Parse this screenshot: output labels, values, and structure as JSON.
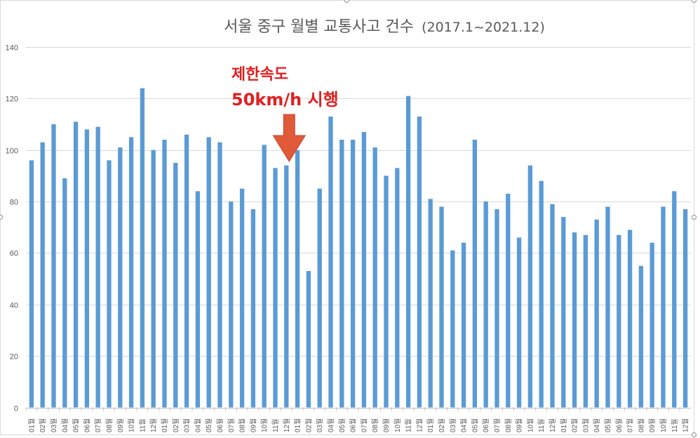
{
  "chart_data": {
    "type": "bar",
    "title": "서울 중구 월별 교통사고 건수",
    "subtitle": "(2017.1~2021.12)",
    "xlabel": "",
    "ylabel": "",
    "ylim": [
      0,
      140
    ],
    "yticks": [
      "0",
      "20",
      "40",
      "60",
      "80",
      "100",
      "120",
      "140"
    ],
    "grid": true,
    "legend": "none",
    "bar_color": "#5b9bd5",
    "categories": [
      "01월",
      "02월",
      "03월",
      "04월",
      "05월",
      "06월",
      "07월",
      "08월",
      "09월",
      "10월",
      "11월",
      "12월",
      "01월",
      "02월",
      "03월",
      "04월",
      "05월",
      "06월",
      "07월",
      "08월",
      "09월",
      "10월",
      "11월",
      "12월",
      "01월",
      "02월",
      "03월",
      "04월",
      "05월",
      "06월",
      "07월",
      "08월",
      "09월",
      "10월",
      "11월",
      "12월",
      "01월",
      "02월",
      "03월",
      "04월",
      "05월",
      "06월",
      "07월",
      "08월",
      "09월",
      "10월",
      "11월",
      "12월",
      "01월",
      "02월",
      "03월",
      "04월",
      "05월",
      "06월",
      "07월",
      "08월",
      "09월",
      "10월",
      "11월",
      "12월"
    ],
    "values": [
      96,
      103,
      110,
      89,
      111,
      108,
      109,
      96,
      101,
      105,
      124,
      100,
      104,
      95,
      106,
      84,
      105,
      103,
      80,
      85,
      77,
      102,
      93,
      94,
      100,
      53,
      85,
      113,
      104,
      104,
      107,
      101,
      90,
      93,
      121,
      113,
      81,
      78,
      61,
      64,
      104,
      80,
      77,
      83,
      66,
      94,
      88,
      79,
      74,
      68,
      67,
      73,
      78,
      67,
      69,
      55,
      64,
      78,
      84,
      77
    ],
    "annotation": {
      "line1": "제한속도",
      "line2": "50km/h 시행",
      "color": "#e02020",
      "arrow_color": "#e05a3a",
      "arrow_at_category_index": 23
    }
  }
}
